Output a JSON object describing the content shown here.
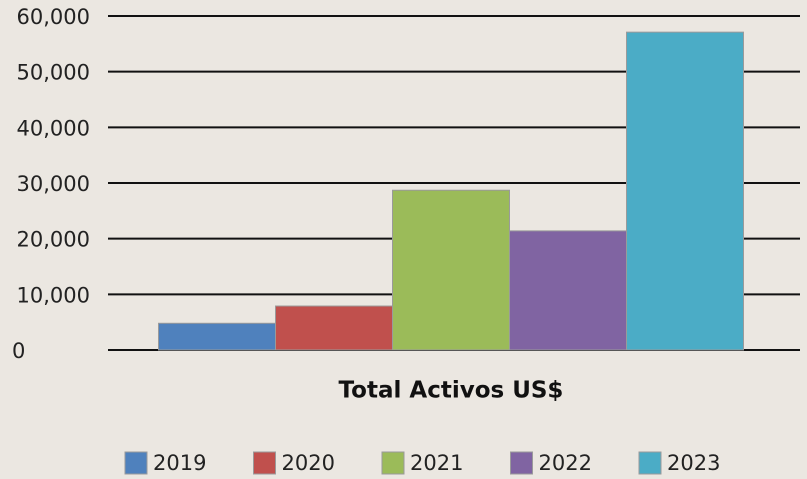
{
  "chart_data": {
    "type": "bar",
    "categories": [
      "Total Activos US$"
    ],
    "series": [
      {
        "name": "2019",
        "color": "#4f81bd",
        "values": [
          4800
        ]
      },
      {
        "name": "2020",
        "color": "#c0504d",
        "values": [
          7900
        ]
      },
      {
        "name": "2021",
        "color": "#9bbb59",
        "values": [
          28700
        ]
      },
      {
        "name": "2022",
        "color": "#8064a2",
        "values": [
          21400
        ]
      },
      {
        "name": "2023",
        "color": "#4bacc6",
        "values": [
          57100
        ]
      }
    ],
    "ylim": [
      0,
      60000
    ],
    "yticks": [
      0,
      {
        "value": 10000,
        "label": "10,000"
      },
      {
        "value": 20000,
        "label": "20,000"
      },
      {
        "value": 30000,
        "label": "30,000"
      },
      {
        "value": 40000,
        "label": "40,000"
      },
      {
        "value": 50000,
        "label": "50,000"
      },
      {
        "value": 60000,
        "label": "60,000"
      }
    ],
    "grid": true,
    "legend": "bottom"
  }
}
